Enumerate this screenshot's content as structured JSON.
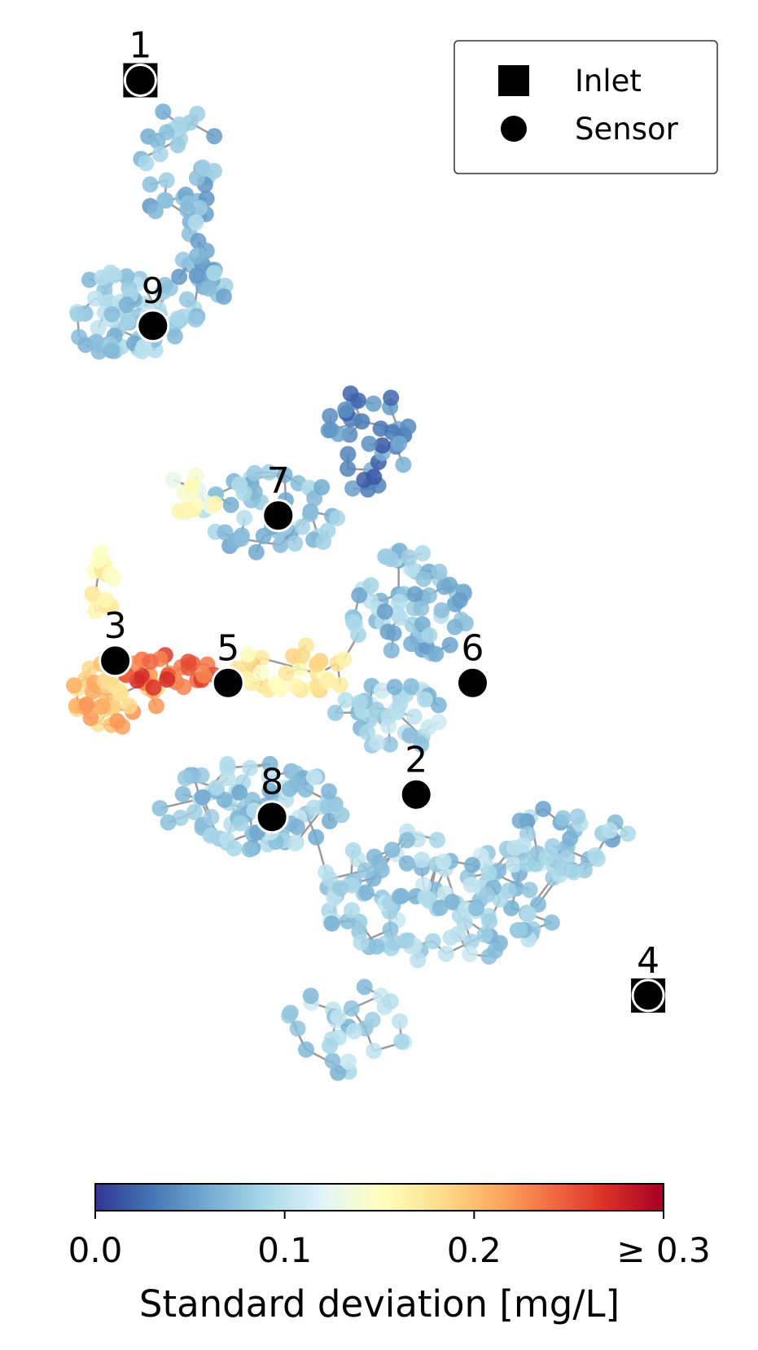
{
  "chart_data": {
    "type": "scatter",
    "subtype": "network-map",
    "title": "",
    "legend": {
      "placement": "top-right",
      "entries": [
        {
          "label": "Inlet",
          "marker": "square",
          "color": "#000000"
        },
        {
          "label": "Sensor",
          "marker": "circle",
          "color": "#000000"
        }
      ]
    },
    "colorbar": {
      "label": "Standard deviation [mg/L]",
      "min": 0.0,
      "max": 0.3,
      "ticks": [
        "0.0",
        "0.1",
        "0.2",
        "≥ 0.3"
      ],
      "tick_values": [
        0.0,
        0.1,
        0.2,
        0.3
      ],
      "colormap": [
        "#313695",
        "#4575b4",
        "#74add1",
        "#abd9e9",
        "#e0f3f8",
        "#ffffbf",
        "#fee090",
        "#fdae61",
        "#f46d43",
        "#d73027",
        "#a50026"
      ]
    },
    "sensors": [
      {
        "id": "1",
        "x": 0.12,
        "y": 0.95,
        "inlet": true
      },
      {
        "id": "9",
        "x": 0.14,
        "y": 0.73
      },
      {
        "id": "7",
        "x": 0.34,
        "y": 0.56
      },
      {
        "id": "3",
        "x": 0.08,
        "y": 0.43
      },
      {
        "id": "5",
        "x": 0.26,
        "y": 0.41
      },
      {
        "id": "6",
        "x": 0.65,
        "y": 0.41
      },
      {
        "id": "2",
        "x": 0.56,
        "y": 0.31
      },
      {
        "id": "8",
        "x": 0.33,
        "y": 0.29
      },
      {
        "id": "4",
        "x": 0.93,
        "y": 0.13,
        "inlet": true
      }
    ],
    "node_clusters": [
      {
        "x": 0.18,
        "y": 0.87,
        "rx": 0.07,
        "ry": 0.06,
        "n": 40,
        "sd": 0.072
      },
      {
        "x": 0.1,
        "y": 0.74,
        "rx": 0.1,
        "ry": 0.04,
        "n": 70,
        "sd": 0.08
      },
      {
        "x": 0.22,
        "y": 0.77,
        "rx": 0.04,
        "ry": 0.04,
        "n": 25,
        "sd": 0.07
      },
      {
        "x": 0.48,
        "y": 0.63,
        "rx": 0.07,
        "ry": 0.05,
        "n": 35,
        "sd": 0.04
      },
      {
        "x": 0.33,
        "y": 0.56,
        "rx": 0.11,
        "ry": 0.04,
        "n": 50,
        "sd": 0.072
      },
      {
        "x": 0.2,
        "y": 0.58,
        "rx": 0.05,
        "ry": 0.02,
        "n": 16,
        "sd": 0.14
      },
      {
        "x": 0.06,
        "y": 0.49,
        "rx": 0.02,
        "ry": 0.04,
        "n": 14,
        "sd": 0.17
      },
      {
        "x": 0.08,
        "y": 0.4,
        "rx": 0.08,
        "ry": 0.03,
        "n": 40,
        "sd": 0.2
      },
      {
        "x": 0.16,
        "y": 0.42,
        "rx": 0.08,
        "ry": 0.015,
        "n": 25,
        "sd": 0.25
      },
      {
        "x": 0.36,
        "y": 0.42,
        "rx": 0.1,
        "ry": 0.025,
        "n": 35,
        "sd": 0.17
      },
      {
        "x": 0.55,
        "y": 0.48,
        "rx": 0.1,
        "ry": 0.05,
        "n": 70,
        "sd": 0.075
      },
      {
        "x": 0.52,
        "y": 0.38,
        "rx": 0.09,
        "ry": 0.03,
        "n": 40,
        "sd": 0.085
      },
      {
        "x": 0.3,
        "y": 0.3,
        "rx": 0.15,
        "ry": 0.04,
        "n": 85,
        "sd": 0.08
      },
      {
        "x": 0.6,
        "y": 0.22,
        "rx": 0.2,
        "ry": 0.06,
        "n": 130,
        "sd": 0.085
      },
      {
        "x": 0.8,
        "y": 0.27,
        "rx": 0.1,
        "ry": 0.03,
        "n": 35,
        "sd": 0.075
      },
      {
        "x": 0.45,
        "y": 0.1,
        "rx": 0.1,
        "ry": 0.04,
        "n": 30,
        "sd": 0.085
      }
    ]
  }
}
